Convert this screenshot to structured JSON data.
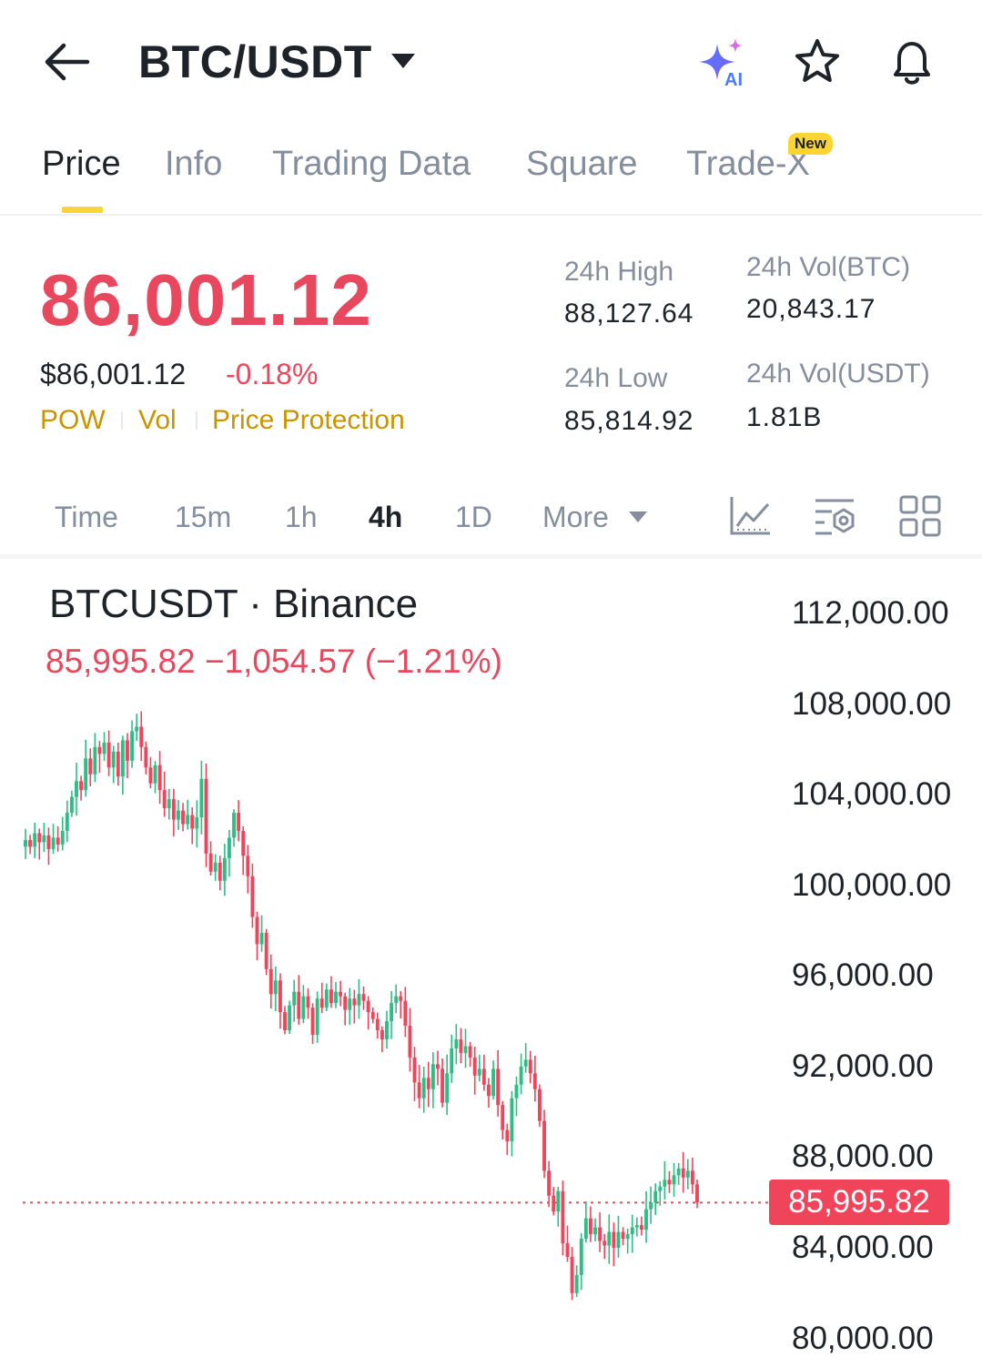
{
  "header": {
    "pair": "BTC/USDT",
    "ai_badge": "AI"
  },
  "tabs": [
    {
      "label": "Price",
      "active": true
    },
    {
      "label": "Info",
      "active": false
    },
    {
      "label": "Trading Data",
      "active": false
    },
    {
      "label": "Square",
      "active": false
    },
    {
      "label": "Trade-X",
      "active": false,
      "badge": "New"
    }
  ],
  "ticker": {
    "last_price": "86,001.12",
    "usd_price": "$86,001.12",
    "change_pct": "-0.18%",
    "tags": [
      "POW",
      "Vol",
      "Price Protection"
    ],
    "stats": {
      "high_label": "24h High",
      "high_value": "88,127.64",
      "low_label": "24h Low",
      "low_value": "85,814.92",
      "vol_btc_label": "24h Vol(BTC)",
      "vol_btc_value": "20,843.17",
      "vol_usdt_label": "24h Vol(USDT)",
      "vol_usdt_value": "1.81B"
    }
  },
  "intervals": {
    "items": [
      "Time",
      "15m",
      "1h",
      "4h",
      "1D",
      "More"
    ],
    "active": "4h"
  },
  "colors": {
    "up": "#2ebd85",
    "down": "#f0445a",
    "accent": "#fcd535",
    "tag": "#c99400"
  },
  "chart_data": {
    "type": "candlestick",
    "title": "BTCUSDT · Binance",
    "ohlc_summary": "85,995.82  −1,054.57 (−1.21%)",
    "current_price": 85995.82,
    "current_price_label": "85,995.82",
    "y_ticks": [
      112000,
      108000,
      104000,
      100000,
      96000,
      92000,
      88000,
      84000,
      80000
    ],
    "y_tick_labels": [
      "112,000.00",
      "108,000.00",
      "104,000.00",
      "100,000.00",
      "96,000.00",
      "92,000.00",
      "88,000.00",
      "84,000.00",
      "80,000.00"
    ],
    "ylim": [
      79000,
      113200
    ],
    "closes": [
      102000,
      101700,
      102300,
      101900,
      102200,
      101600,
      102100,
      101800,
      102400,
      103200,
      103900,
      104600,
      104200,
      105600,
      104900,
      106100,
      105800,
      106300,
      105200,
      105900,
      104800,
      106400,
      105500,
      106800,
      107000,
      106100,
      105200,
      104500,
      105300,
      104200,
      103400,
      103800,
      102900,
      103300,
      102700,
      103100,
      102500,
      103000,
      104700,
      101400,
      100600,
      101000,
      100200,
      101200,
      102100,
      103200,
      102400,
      101300,
      100400,
      98600,
      97400,
      97900,
      96300,
      95200,
      95800,
      94400,
      93600,
      94700,
      95300,
      94100,
      95100,
      94600,
      93400,
      95000,
      94600,
      95400,
      94800,
      95300,
      95100,
      94500,
      95000,
      94700,
      95200,
      94900,
      94400,
      94100,
      93600,
      93200,
      94000,
      94800,
      95100,
      94900,
      93800,
      92400,
      91300,
      90600,
      91500,
      91000,
      92100,
      91900,
      90400,
      91700,
      92800,
      93200,
      92600,
      92900,
      92400,
      91600,
      91900,
      91200,
      90700,
      91900,
      90300,
      89200,
      88700,
      90600,
      91200,
      92000,
      92300,
      91700,
      91000,
      89600,
      87400,
      86300,
      85600,
      86500,
      84200,
      83600,
      82000,
      82800,
      84400,
      85300,
      84600,
      84900,
      84300,
      84100,
      84700,
      84000,
      84700,
      84400,
      84600,
      84900,
      85000,
      84800,
      85700,
      86000,
      86500,
      86700,
      87000,
      86800,
      87200,
      87500,
      87100,
      87400,
      86800,
      86000
    ]
  }
}
